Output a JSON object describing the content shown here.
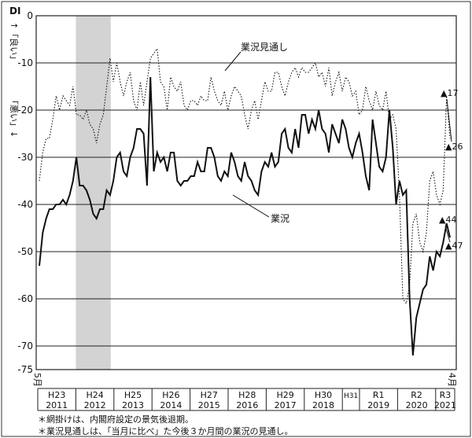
{
  "chart_data": {
    "type": "line",
    "ylabel": "DI",
    "ylim": [
      -75,
      0
    ],
    "yticks": [
      0,
      -10,
      -20,
      -30,
      -40,
      -50,
      -60,
      -70,
      -75
    ],
    "grid": true,
    "y_side_labels": [
      "↑「良い」",
      "「悪い」↓"
    ],
    "x_start_label": "5月",
    "x_end_label": "4月",
    "shaded_period": {
      "label": "景気後退期",
      "from_year_label": "H24 2012",
      "span": "mid-2012"
    },
    "years": [
      {
        "era": "H23",
        "year": "2011"
      },
      {
        "era": "H24",
        "year": "2012"
      },
      {
        "era": "H25",
        "year": "2013"
      },
      {
        "era": "H26",
        "year": "2014"
      },
      {
        "era": "H27",
        "year": "2015"
      },
      {
        "era": "H28",
        "year": "2016"
      },
      {
        "era": "H29",
        "year": "2017"
      },
      {
        "era": "H30",
        "year": "2018"
      },
      {
        "era": "H31",
        "year": ""
      },
      {
        "era": "R1",
        "year": "2019"
      },
      {
        "era": "R2",
        "year": "2020"
      },
      {
        "era": "R3",
        "year": "2021"
      }
    ],
    "series": [
      {
        "name": "業況",
        "style": "solid",
        "values": [
          -53,
          -46,
          -43,
          -41,
          -41,
          -40,
          -40,
          -39,
          -40,
          -38,
          -35,
          -30,
          -36,
          -36,
          -37,
          -39,
          -42,
          -43,
          -41,
          -41,
          -37,
          -38,
          -35,
          -30,
          -29,
          -33,
          -34,
          -30,
          -28,
          -24,
          -24,
          -25,
          -36,
          -13,
          -33,
          -29,
          -31,
          -30,
          -33,
          -29,
          -29,
          -35,
          -36,
          -35,
          -35,
          -34,
          -34,
          -31,
          -33,
          -33,
          -28,
          -28,
          -30,
          -34,
          -35,
          -33,
          -34,
          -29,
          -31,
          -34,
          -35,
          -31,
          -34,
          -35,
          -37,
          -38,
          -33,
          -31,
          -32,
          -29,
          -32,
          -31,
          -25,
          -24,
          -28,
          -29,
          -24,
          -28,
          -21,
          -21,
          -25,
          -22,
          -24,
          -20,
          -24,
          -25,
          -29,
          -23,
          -25,
          -27,
          -22,
          -24,
          -28,
          -30,
          -27,
          -25,
          -29,
          -34,
          -37,
          -22,
          -27,
          -32,
          -33,
          -30,
          -20,
          -28,
          -40,
          -35,
          -38,
          -37,
          -60,
          -72,
          -64,
          -61,
          -58,
          -57,
          -51,
          -54,
          -50,
          -51,
          -48,
          -44,
          -47
        ],
        "end_label": "▲44",
        "end_label_2": "▲47"
      },
      {
        "name": "業況見通し",
        "style": "dotted",
        "values": [
          -35,
          -29,
          -26,
          -26,
          -22,
          -17,
          -20,
          -17,
          -18,
          -19,
          -15,
          -21,
          -21,
          -22,
          -20,
          -23,
          -24,
          -27,
          -23,
          -21,
          -15,
          -9,
          -14,
          -10,
          -14,
          -17,
          -14,
          -12,
          -18,
          -20,
          -14,
          -19,
          -14,
          -9,
          -8,
          -7,
          -14,
          -15,
          -20,
          -13,
          -15,
          -16,
          -14,
          -19,
          -20,
          -18,
          -18,
          -19,
          -17,
          -18,
          -18,
          -13,
          -16,
          -18,
          -19,
          -16,
          -20,
          -17,
          -15,
          -16,
          -17,
          -21,
          -24,
          -20,
          -18,
          -22,
          -18,
          -14,
          -16,
          -16,
          -12,
          -12,
          -15,
          -17,
          -14,
          -12,
          -11,
          -13,
          -11,
          -12,
          -12,
          -11,
          -10,
          -13,
          -12,
          -15,
          -11,
          -17,
          -14,
          -12,
          -16,
          -13,
          -14,
          -17,
          -16,
          -21,
          -20,
          -15,
          -18,
          -20,
          -16,
          -19,
          -20,
          -16,
          -22,
          -21,
          -24,
          -38,
          -60,
          -61,
          -57,
          -44,
          -42,
          -48,
          -50,
          -46,
          -35,
          -33,
          -38,
          -40,
          -37,
          -17,
          -26
        ],
        "end_label": "▲17",
        "end_label_2": "▲26"
      }
    ],
    "notes": [
      "＊網掛けは、内閣府設定の景気後退期。",
      "＊業況見通しは、「当月に比べ」た今後３か月間の業況の見通し。"
    ]
  }
}
